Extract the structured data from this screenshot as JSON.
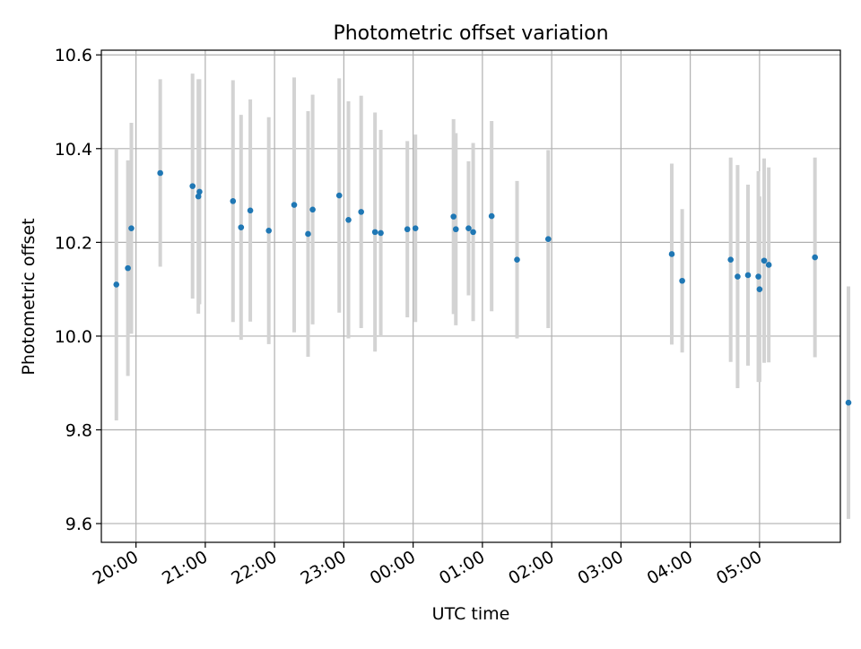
{
  "chart_data": {
    "type": "scatter",
    "title": "Photometric offset variation",
    "xlabel": "UTC time",
    "ylabel": "Photometric offset",
    "x_tick_labels": [
      "20:00",
      "21:00",
      "22:00",
      "23:00",
      "00:00",
      "01:00",
      "02:00",
      "03:00",
      "04:00",
      "05:00"
    ],
    "y_ticks": [
      9.6,
      9.8,
      10.0,
      10.2,
      10.4,
      10.6
    ],
    "y_tick_labels": [
      "9.6",
      "9.8",
      "10.0",
      "10.2",
      "10.4",
      "10.6"
    ],
    "xlim": [
      "19:30",
      "30:10"
    ],
    "ylim": [
      9.56,
      10.61
    ],
    "grid": true,
    "colors": {
      "point": "#1f77b4",
      "errorbar": "#d3d3d3",
      "grid": "#b0b0b0"
    },
    "points": [
      {
        "t": "19:43",
        "y": 10.11,
        "yerr": 0.29
      },
      {
        "t": "19:53",
        "y": 10.145,
        "yerr": 0.23
      },
      {
        "t": "19:56",
        "y": 10.23,
        "yerr": 0.225
      },
      {
        "t": "20:21",
        "y": 10.348,
        "yerr": 0.2
      },
      {
        "t": "20:49",
        "y": 10.32,
        "yerr": 0.24
      },
      {
        "t": "20:54",
        "y": 10.298,
        "yerr": 0.25
      },
      {
        "t": "20:55",
        "y": 10.308,
        "yerr": 0.24
      },
      {
        "t": "21:24",
        "y": 10.288,
        "yerr": 0.258
      },
      {
        "t": "21:31",
        "y": 10.232,
        "yerr": 0.24
      },
      {
        "t": "21:39",
        "y": 10.268,
        "yerr": 0.237
      },
      {
        "t": "21:55",
        "y": 10.225,
        "yerr": 0.242
      },
      {
        "t": "22:17",
        "y": 10.28,
        "yerr": 0.272
      },
      {
        "t": "22:29",
        "y": 10.218,
        "yerr": 0.262
      },
      {
        "t": "22:33",
        "y": 10.27,
        "yerr": 0.245
      },
      {
        "t": "22:56",
        "y": 10.3,
        "yerr": 0.25
      },
      {
        "t": "23:04",
        "y": 10.248,
        "yerr": 0.253
      },
      {
        "t": "23:15",
        "y": 10.265,
        "yerr": 0.248
      },
      {
        "t": "23:27",
        "y": 10.222,
        "yerr": 0.255
      },
      {
        "t": "23:32",
        "y": 10.22,
        "yerr": 0.22
      },
      {
        "t": "23:55",
        "y": 10.228,
        "yerr": 0.188
      },
      {
        "t": "24:02",
        "y": 10.23,
        "yerr": 0.2
      },
      {
        "t": "24:35",
        "y": 10.255,
        "yerr": 0.208
      },
      {
        "t": "24:37",
        "y": 10.228,
        "yerr": 0.205
      },
      {
        "t": "24:48",
        "y": 10.23,
        "yerr": 0.143
      },
      {
        "t": "24:52",
        "y": 10.222,
        "yerr": 0.19
      },
      {
        "t": "25:08",
        "y": 10.256,
        "yerr": 0.203
      },
      {
        "t": "25:30",
        "y": 10.163,
        "yerr": 0.168
      },
      {
        "t": "25:57",
        "y": 10.207,
        "yerr": 0.19
      },
      {
        "t": "27:44",
        "y": 10.175,
        "yerr": 0.193
      },
      {
        "t": "27:53",
        "y": 10.118,
        "yerr": 0.153
      },
      {
        "t": "28:35",
        "y": 10.163,
        "yerr": 0.218
      },
      {
        "t": "28:41",
        "y": 10.127,
        "yerr": 0.238
      },
      {
        "t": "28:50",
        "y": 10.13,
        "yerr": 0.193
      },
      {
        "t": "28:59",
        "y": 10.127,
        "yerr": 0.225
      },
      {
        "t": "29:00",
        "y": 10.1,
        "yerr": 0.198
      },
      {
        "t": "29:04",
        "y": 10.161,
        "yerr": 0.218
      },
      {
        "t": "29:08",
        "y": 10.152,
        "yerr": 0.208
      },
      {
        "t": "29:48",
        "y": 10.168,
        "yerr": 0.213
      },
      {
        "t": "30:17",
        "y": 9.858,
        "yerr": 0.248
      }
    ]
  }
}
